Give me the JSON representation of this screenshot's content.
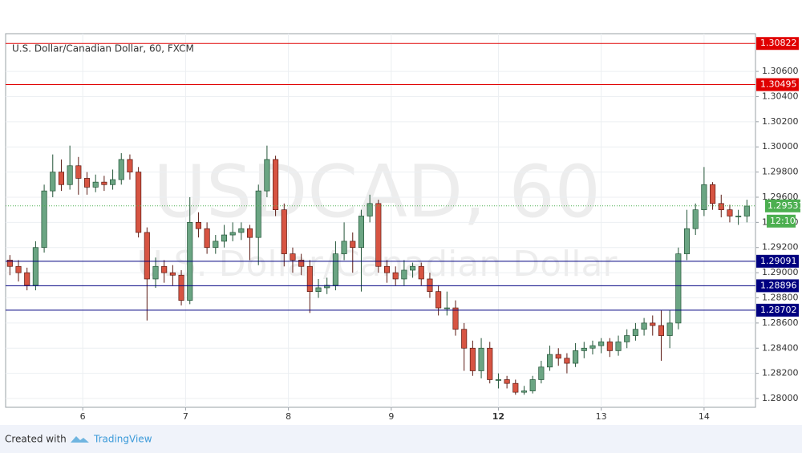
{
  "chart_data": {
    "type": "candlestick",
    "title": "U.S. Dollar/Canadian Dollar, 60, FXCM",
    "watermark": "USDCAD, 60",
    "watermark_subtitle": "U.S. Dollar/Canadian Dollar",
    "footer": {
      "created": "Created with",
      "brand": "TradingView"
    },
    "up_color": "#6ba583",
    "down_color": "#d75442",
    "xlim": [
      0,
      175
    ],
    "xticks": [
      {
        "value": 18,
        "label": "6"
      },
      {
        "value": 42,
        "label": "7"
      },
      {
        "value": 66,
        "label": "8"
      },
      {
        "value": 90,
        "label": "9"
      },
      {
        "value": 115,
        "label": "12"
      },
      {
        "value": 139,
        "label": "13"
      },
      {
        "value": 163,
        "label": "14"
      }
    ],
    "ylim": [
      1.2793,
      1.309
    ],
    "yticks": [
      {
        "value": 1.28,
        "label": "1.28000"
      },
      {
        "value": 1.282,
        "label": "1.28200"
      },
      {
        "value": 1.284,
        "label": "1.28400"
      },
      {
        "value": 1.286,
        "label": "1.28600"
      },
      {
        "value": 1.288,
        "label": "1.28800"
      },
      {
        "value": 1.29,
        "label": "1.29000"
      },
      {
        "value": 1.292,
        "label": "1.29200"
      },
      {
        "value": 1.294,
        "label": "1.29400"
      },
      {
        "value": 1.296,
        "label": "1.29600"
      },
      {
        "value": 1.298,
        "label": "1.29800"
      },
      {
        "value": 1.3,
        "label": "1.30000"
      },
      {
        "value": 1.302,
        "label": "1.30200"
      },
      {
        "value": 1.304,
        "label": "1.30400"
      },
      {
        "value": 1.306,
        "label": "1.30600"
      }
    ],
    "grid": true,
    "levels": [
      {
        "value": 1.30822,
        "color": "#e00000"
      },
      {
        "value": 1.30495,
        "color": "#e00000"
      },
      {
        "value": 1.29091,
        "color": "#000080"
      },
      {
        "value": 1.28896,
        "color": "#000080"
      },
      {
        "value": 1.28702,
        "color": "#000080"
      }
    ],
    "last": {
      "value": 1.29531,
      "color": "#4caf50",
      "countdown": "12:10"
    },
    "x": [
      1,
      3,
      5,
      7,
      9,
      11,
      13,
      15,
      17,
      19,
      21,
      23,
      25,
      27,
      29,
      31,
      33,
      35,
      37,
      39,
      41,
      43,
      45,
      47,
      49,
      51,
      53,
      55,
      57,
      59,
      61,
      63,
      65,
      67,
      69,
      71,
      73,
      75,
      77,
      79,
      81,
      83,
      85,
      87,
      89,
      91,
      93,
      95,
      97,
      99,
      101,
      103,
      105,
      107,
      109,
      111,
      113,
      115,
      117,
      119,
      121,
      123,
      125,
      127,
      129,
      131,
      133,
      135,
      137,
      139,
      141,
      143,
      145,
      147,
      149,
      151,
      153,
      155,
      157,
      159,
      161,
      163,
      165,
      167,
      169,
      171,
      173
    ],
    "open": [
      1.291,
      1.2905,
      1.29,
      1.289,
      1.292,
      1.2965,
      1.298,
      1.297,
      1.2985,
      1.2975,
      1.2968,
      1.2972,
      1.297,
      1.2974,
      1.299,
      1.298,
      1.2932,
      1.2895,
      1.2905,
      1.29,
      1.2898,
      1.2878,
      1.294,
      1.2935,
      1.292,
      1.2925,
      1.293,
      1.2932,
      1.2935,
      1.2928,
      1.2965,
      1.299,
      1.295,
      1.2915,
      1.291,
      1.2905,
      1.2885,
      1.2888,
      1.289,
      1.2915,
      1.2925,
      1.292,
      1.2945,
      1.2955,
      1.2905,
      1.29,
      1.2895,
      1.2902,
      1.2905,
      1.2895,
      1.2885,
      1.2872,
      1.2872,
      1.2855,
      1.284,
      1.2822,
      1.284,
      1.2815,
      1.2815,
      1.2812,
      1.2805,
      1.2806,
      1.2815,
      1.2825,
      1.2835,
      1.2832,
      1.2828,
      1.2838,
      1.284,
      1.2842,
      1.2845,
      1.2838,
      1.2845,
      1.285,
      1.2855,
      1.286,
      1.2858,
      1.285,
      1.286,
      1.2915,
      1.2935,
      1.295,
      1.297,
      1.2955,
      1.295,
      1.2945,
      1.2945
    ],
    "high": [
      1.2914,
      1.291,
      1.2904,
      1.2925,
      1.297,
      1.2994,
      1.299,
      1.3001,
      1.2992,
      1.298,
      1.2978,
      1.2977,
      1.2982,
      1.2995,
      1.2994,
      1.2984,
      1.2936,
      1.2912,
      1.291,
      1.2906,
      1.2902,
      1.296,
      1.2948,
      1.294,
      1.293,
      1.2938,
      1.294,
      1.294,
      1.2938,
      1.297,
      1.3001,
      1.2993,
      1.2955,
      1.292,
      1.2915,
      1.291,
      1.2895,
      1.2896,
      1.2925,
      1.294,
      1.2932,
      1.295,
      1.2962,
      1.2958,
      1.291,
      1.2905,
      1.291,
      1.2908,
      1.2908,
      1.29,
      1.289,
      1.2885,
      1.2878,
      1.286,
      1.2846,
      1.2848,
      1.2845,
      1.282,
      1.2818,
      1.2815,
      1.281,
      1.2818,
      1.283,
      1.2842,
      1.284,
      1.2836,
      1.2844,
      1.2845,
      1.2846,
      1.2848,
      1.2848,
      1.285,
      1.2855,
      1.286,
      1.2864,
      1.2866,
      1.287,
      1.287,
      1.292,
      1.295,
      1.2955,
      1.2984,
      1.2972,
      1.2962,
      1.2954,
      1.295,
      1.2958
    ],
    "low": [
      1.2898,
      1.2893,
      1.2886,
      1.2886,
      1.2916,
      1.296,
      1.2965,
      1.2966,
      1.2962,
      1.2962,
      1.2964,
      1.2965,
      1.2966,
      1.297,
      1.2974,
      1.2928,
      1.2862,
      1.2888,
      1.2892,
      1.289,
      1.2874,
      1.2875,
      1.2928,
      1.2915,
      1.2915,
      1.292,
      1.2925,
      1.2926,
      1.291,
      1.2906,
      1.296,
      1.2945,
      1.2905,
      1.29,
      1.2898,
      1.2868,
      1.288,
      1.2883,
      1.2886,
      1.291,
      1.29,
      1.2885,
      1.294,
      1.29,
      1.2892,
      1.289,
      1.289,
      1.2896,
      1.289,
      1.288,
      1.2866,
      1.2866,
      1.285,
      1.2822,
      1.2818,
      1.2816,
      1.2812,
      1.2808,
      1.2808,
      1.2803,
      1.2803,
      1.2804,
      1.2812,
      1.2822,
      1.2826,
      1.282,
      1.2825,
      1.2832,
      1.2835,
      1.2836,
      1.2833,
      1.2834,
      1.284,
      1.2846,
      1.285,
      1.285,
      1.283,
      1.284,
      1.2855,
      1.291,
      1.293,
      1.2945,
      1.295,
      1.2944,
      1.294,
      1.2938,
      1.294
    ],
    "close": [
      1.2905,
      1.29,
      1.289,
      1.292,
      1.2965,
      1.298,
      1.297,
      1.2985,
      1.2975,
      1.2968,
      1.2972,
      1.297,
      1.2974,
      1.299,
      1.298,
      1.2932,
      1.2895,
      1.2905,
      1.29,
      1.2898,
      1.2878,
      1.294,
      1.2935,
      1.292,
      1.2925,
      1.293,
      1.2932,
      1.2935,
      1.2928,
      1.2965,
      1.299,
      1.295,
      1.2915,
      1.291,
      1.2905,
      1.2885,
      1.2888,
      1.289,
      1.2915,
      1.2925,
      1.292,
      1.2945,
      1.2955,
      1.2905,
      1.29,
      1.2895,
      1.2902,
      1.2905,
      1.2895,
      1.2885,
      1.2872,
      1.2872,
      1.2855,
      1.284,
      1.2822,
      1.284,
      1.2815,
      1.2815,
      1.2812,
      1.2805,
      1.2806,
      1.2815,
      1.2825,
      1.2835,
      1.2832,
      1.2828,
      1.2838,
      1.284,
      1.2842,
      1.2845,
      1.2838,
      1.2845,
      1.285,
      1.2855,
      1.286,
      1.2858,
      1.285,
      1.286,
      1.2915,
      1.2935,
      1.295,
      1.297,
      1.2955,
      1.295,
      1.2945,
      1.2945,
      1.2953
    ]
  }
}
